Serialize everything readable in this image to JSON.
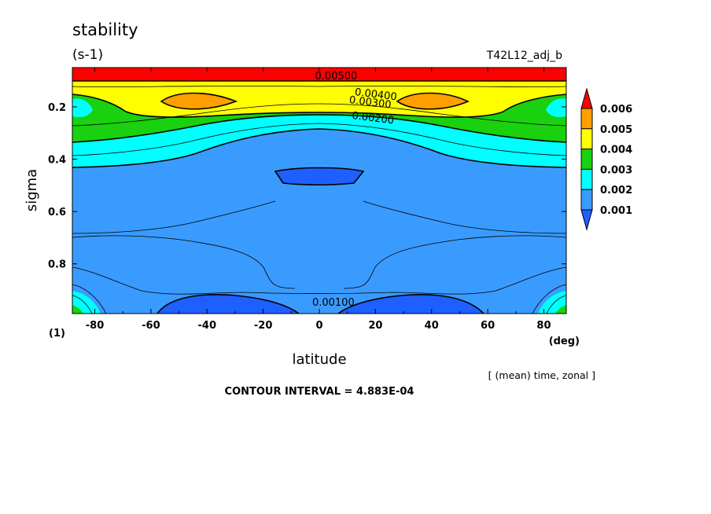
{
  "chart_data": {
    "type": "heatmap",
    "title": "stability",
    "units": "(s-1)",
    "run_label": "T42L12_adj_b",
    "xlabel": "latitude",
    "xunits": "(deg)",
    "ylabel": "sigma",
    "yunits": "(1)",
    "xlim": [
      -88,
      88
    ],
    "ylim": [
      0.05,
      0.99
    ],
    "xticks": [
      -80,
      -60,
      -40,
      -20,
      0,
      20,
      40,
      60,
      80
    ],
    "yticks": [
      0.2,
      0.4,
      0.6,
      0.8
    ],
    "colorbar_levels": [
      0.001,
      0.002,
      0.003,
      0.004,
      0.005,
      0.006
    ],
    "colorbar_colors": [
      "#1f5fff",
      "#3a9bff",
      "#00ffff",
      "#19d10e",
      "#ffff00",
      "#ff9f00",
      "#ff0000"
    ],
    "contour_labels": [
      {
        "text": "0.00500",
        "x": 6,
        "y": 0.095
      },
      {
        "text": "0.00400",
        "x": 20,
        "y": 0.165
      },
      {
        "text": "0.00300",
        "x": 18,
        "y": 0.195
      },
      {
        "text": "0.00200",
        "x": 19,
        "y": 0.255
      },
      {
        "text": "0.00100",
        "x": 5,
        "y": 0.96
      }
    ],
    "averaging_note": "[ (mean) time, zonal ]",
    "contour_interval": "CONTOUR INTERVAL = 4.883E-04"
  }
}
